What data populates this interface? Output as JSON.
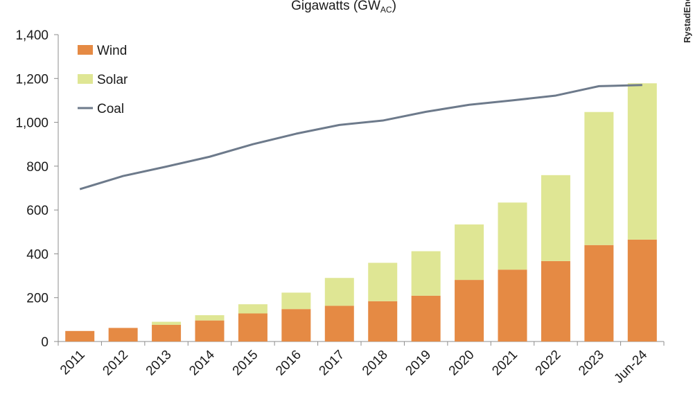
{
  "chart_data": {
    "type": "bar",
    "title": "Gigawatts (GW",
    "title_subscript": "AC",
    "title_close": ")",
    "brand": "RystadEnergy",
    "categories": [
      "2011",
      "2012",
      "2013",
      "2014",
      "2015",
      "2016",
      "2017",
      "2018",
      "2019",
      "2020",
      "2021",
      "2022",
      "2023",
      "Jun-24"
    ],
    "series": [
      {
        "name": "Wind",
        "kind": "bar",
        "color": "#e58a44",
        "values": [
          48,
          62,
          76,
          96,
          128,
          148,
          163,
          184,
          209,
          281,
          328,
          367,
          440,
          465
        ]
      },
      {
        "name": "Solar",
        "kind": "bar",
        "color": "#dfe694",
        "values": [
          0,
          0,
          14,
          24,
          42,
          75,
          127,
          175,
          203,
          253,
          306,
          392,
          607,
          713
        ]
      },
      {
        "name": "Coal",
        "kind": "line",
        "color": "#6d7a8b",
        "values": [
          695,
          755,
          798,
          843,
          900,
          948,
          988,
          1008,
          1048,
          1080,
          1100,
          1122,
          1165,
          1170
        ]
      }
    ],
    "ylim": [
      0,
      1400
    ],
    "yticks": [
      "0",
      "200",
      "400",
      "600",
      "800",
      "1,000",
      "1,200",
      "1,400"
    ],
    "ytick_values": [
      0,
      200,
      400,
      600,
      800,
      1000,
      1200,
      1400
    ],
    "legend_placement": "top-left",
    "grid": false
  }
}
